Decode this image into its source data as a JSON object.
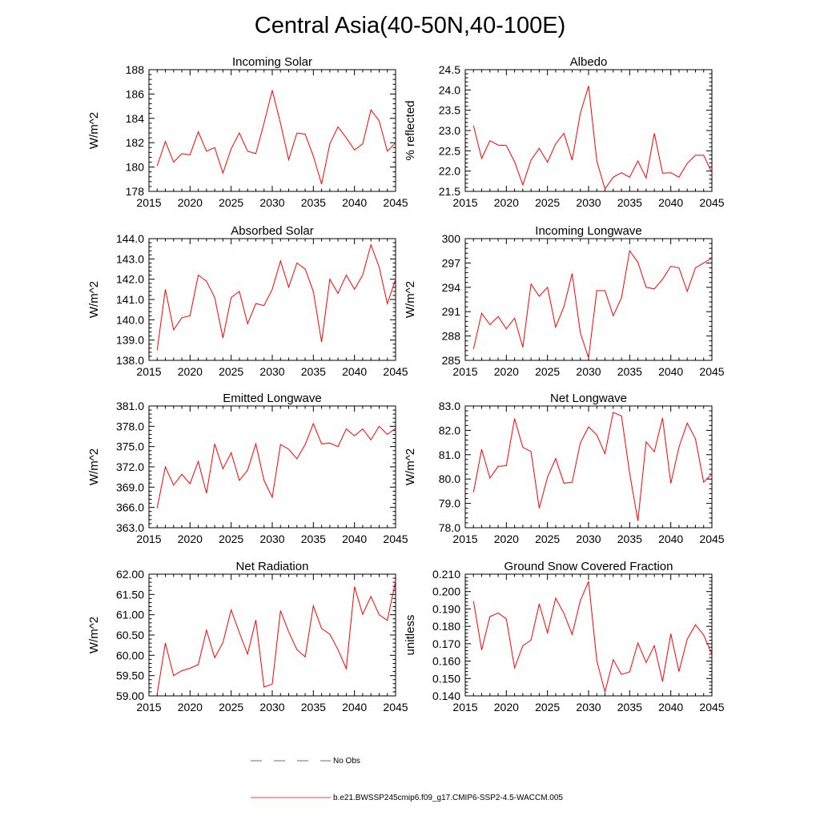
{
  "figure_title": "Central Asia(40-50N,40-100E)",
  "chart_data": [
    {
      "type": "line",
      "title": "Incoming Solar",
      "xlabel": "",
      "ylabel": "W/m^2",
      "xlim": [
        2015,
        2045
      ],
      "ylim": [
        178,
        188
      ],
      "xticks": [
        2015,
        2020,
        2025,
        2030,
        2035,
        2040,
        2045
      ],
      "yticks": [
        "178",
        "180",
        "182",
        "184",
        "186",
        "188"
      ],
      "x": [
        2016,
        2017,
        2018,
        2019,
        2020,
        2021,
        2022,
        2023,
        2024,
        2025,
        2026,
        2027,
        2028,
        2029,
        2030,
        2031,
        2032,
        2033,
        2034,
        2035,
        2036,
        2037,
        2038,
        2039,
        2040,
        2041,
        2042,
        2043,
        2044,
        2045
      ],
      "series": [
        {
          "name": "b.e21.BWSSP245cmip6.f09_g17.CMIP6-SSP2-4.5-WACCM.005",
          "values": [
            180.1,
            182.1,
            180.4,
            181.1,
            181.0,
            182.9,
            181.3,
            181.6,
            179.5,
            181.5,
            182.8,
            181.3,
            181.1,
            183.6,
            186.3,
            183.6,
            180.6,
            182.8,
            182.7,
            180.9,
            178.6,
            181.9,
            183.3,
            182.4,
            181.4,
            181.9,
            184.7,
            183.8,
            181.3,
            182.0
          ]
        }
      ]
    },
    {
      "type": "line",
      "title": "Albedo",
      "xlabel": "",
      "ylabel": "% reflected",
      "xlim": [
        2015,
        2045
      ],
      "ylim": [
        21.5,
        24.5
      ],
      "xticks": [
        2015,
        2020,
        2025,
        2030,
        2035,
        2040,
        2045
      ],
      "yticks": [
        "21.5",
        "22.0",
        "22.5",
        "23.0",
        "23.5",
        "24.0",
        "24.5"
      ],
      "x": [
        2016,
        2017,
        2018,
        2019,
        2020,
        2021,
        2022,
        2023,
        2024,
        2025,
        2026,
        2027,
        2028,
        2029,
        2030,
        2031,
        2032,
        2033,
        2034,
        2035,
        2036,
        2037,
        2038,
        2039,
        2040,
        2041,
        2042,
        2043,
        2044,
        2045
      ],
      "series": [
        {
          "name": "b.e21.BWSSP245cmip6.f09_g17.CMIP6-SSP2-4.5-WACCM.005",
          "values": [
            23.12,
            22.31,
            22.75,
            22.64,
            22.63,
            22.23,
            21.66,
            22.27,
            22.56,
            22.22,
            22.67,
            22.93,
            22.27,
            23.42,
            24.1,
            22.25,
            21.56,
            21.85,
            21.96,
            21.85,
            22.25,
            21.83,
            22.93,
            21.95,
            21.96,
            21.85,
            22.19,
            22.39,
            22.39,
            21.96
          ]
        }
      ]
    },
    {
      "type": "line",
      "title": "Absorbed Solar",
      "xlabel": "",
      "ylabel": "W/m^2",
      "xlim": [
        2015,
        2045
      ],
      "ylim": [
        138.0,
        144.0
      ],
      "xticks": [
        2015,
        2020,
        2025,
        2030,
        2035,
        2040,
        2045
      ],
      "yticks": [
        "138.0",
        "139.0",
        "140.0",
        "141.0",
        "142.0",
        "143.0",
        "144.0"
      ],
      "x": [
        2016,
        2017,
        2018,
        2019,
        2020,
        2021,
        2022,
        2023,
        2024,
        2025,
        2026,
        2027,
        2028,
        2029,
        2030,
        2031,
        2032,
        2033,
        2034,
        2035,
        2036,
        2037,
        2038,
        2039,
        2040,
        2041,
        2042,
        2043,
        2044,
        2045
      ],
      "series": [
        {
          "name": "b.e21.BWSSP245cmip6.f09_g17.CMIP6-SSP2-4.5-WACCM.005",
          "values": [
            138.5,
            141.5,
            139.5,
            140.1,
            140.2,
            142.2,
            141.9,
            141.1,
            139.1,
            141.1,
            141.4,
            139.8,
            140.8,
            140.7,
            141.5,
            142.9,
            141.6,
            142.8,
            142.5,
            141.4,
            138.9,
            142.0,
            141.3,
            142.2,
            141.5,
            142.2,
            143.7,
            142.6,
            140.8,
            142.0
          ]
        }
      ]
    },
    {
      "type": "line",
      "title": "Incoming Longwave",
      "xlabel": "",
      "ylabel": "W/m^2",
      "xlim": [
        2015,
        2045
      ],
      "ylim": [
        285,
        300
      ],
      "xticks": [
        2015,
        2020,
        2025,
        2030,
        2035,
        2040,
        2045
      ],
      "yticks": [
        "285",
        "288",
        "291",
        "294",
        "297",
        "300"
      ],
      "x": [
        2016,
        2017,
        2018,
        2019,
        2020,
        2021,
        2022,
        2023,
        2024,
        2025,
        2026,
        2027,
        2028,
        2029,
        2030,
        2031,
        2032,
        2033,
        2034,
        2035,
        2036,
        2037,
        2038,
        2039,
        2040,
        2041,
        2042,
        2043,
        2044,
        2045
      ],
      "series": [
        {
          "name": "b.e21.BWSSP245cmip6.f09_g17.CMIP6-SSP2-4.5-WACCM.005",
          "values": [
            286.4,
            290.8,
            289.4,
            290.4,
            288.9,
            290.2,
            286.6,
            294.4,
            292.9,
            294.0,
            289.1,
            291.6,
            295.7,
            288.4,
            285.3,
            293.6,
            293.6,
            290.5,
            292.7,
            298.5,
            297.1,
            294.0,
            293.8,
            295.0,
            296.6,
            296.4,
            293.5,
            296.4,
            297.0,
            297.6
          ]
        }
      ]
    },
    {
      "type": "line",
      "title": "Emitted Longwave",
      "xlabel": "",
      "ylabel": "W/m^2",
      "xlim": [
        2015,
        2045
      ],
      "ylim": [
        363.0,
        381.0
      ],
      "xticks": [
        2015,
        2020,
        2025,
        2030,
        2035,
        2040,
        2045
      ],
      "yticks": [
        "363.0",
        "366.0",
        "369.0",
        "372.0",
        "375.0",
        "378.0",
        "381.0"
      ],
      "x": [
        2016,
        2017,
        2018,
        2019,
        2020,
        2021,
        2022,
        2023,
        2024,
        2025,
        2026,
        2027,
        2028,
        2029,
        2030,
        2031,
        2032,
        2033,
        2034,
        2035,
        2036,
        2037,
        2038,
        2039,
        2040,
        2041,
        2042,
        2043,
        2044,
        2045
      ],
      "series": [
        {
          "name": "b.e21.BWSSP245cmip6.f09_g17.CMIP6-SSP2-4.5-WACCM.005",
          "values": [
            365.9,
            372.0,
            369.3,
            370.9,
            369.5,
            372.8,
            368.1,
            375.4,
            371.7,
            374.1,
            370.0,
            371.5,
            375.4,
            370.0,
            367.5,
            375.3,
            374.6,
            373.2,
            375.3,
            378.4,
            375.4,
            375.5,
            375.0,
            377.6,
            376.6,
            377.6,
            376.0,
            378.0,
            376.8,
            377.7
          ]
        }
      ]
    },
    {
      "type": "line",
      "title": "Net Longwave",
      "xlabel": "",
      "ylabel": "W/m^2",
      "xlim": [
        2015,
        2045
      ],
      "ylim": [
        78.0,
        83.0
      ],
      "xticks": [
        2015,
        2020,
        2025,
        2030,
        2035,
        2040,
        2045
      ],
      "yticks": [
        "78.0",
        "79.0",
        "80.0",
        "81.0",
        "82.0",
        "83.0"
      ],
      "x": [
        2016,
        2017,
        2018,
        2019,
        2020,
        2021,
        2022,
        2023,
        2024,
        2025,
        2026,
        2027,
        2028,
        2029,
        2030,
        2031,
        2032,
        2033,
        2034,
        2035,
        2036,
        2037,
        2038,
        2039,
        2040,
        2041,
        2042,
        2043,
        2044,
        2045
      ],
      "series": [
        {
          "name": "b.e21.BWSSP245cmip6.f09_g17.CMIP6-SSP2-4.5-WACCM.005",
          "values": [
            79.45,
            81.22,
            80.04,
            80.52,
            80.55,
            82.48,
            81.3,
            81.13,
            78.8,
            80.07,
            80.84,
            79.83,
            79.87,
            81.48,
            82.14,
            81.81,
            81.04,
            82.74,
            82.59,
            80.24,
            78.28,
            81.53,
            81.12,
            82.51,
            79.82,
            81.31,
            82.3,
            81.65,
            79.87,
            80.21
          ]
        }
      ]
    },
    {
      "type": "line",
      "title": "Net Radiation",
      "xlabel": "",
      "ylabel": "W/m^2",
      "xlim": [
        2015,
        2045
      ],
      "ylim": [
        59.0,
        62.0
      ],
      "xticks": [
        2015,
        2020,
        2025,
        2030,
        2035,
        2040,
        2045
      ],
      "yticks": [
        "59.00",
        "59.50",
        "60.00",
        "60.50",
        "61.00",
        "61.50",
        "62.00"
      ],
      "x": [
        2016,
        2017,
        2018,
        2019,
        2020,
        2021,
        2022,
        2023,
        2024,
        2025,
        2026,
        2027,
        2028,
        2029,
        2030,
        2031,
        2032,
        2033,
        2034,
        2035,
        2036,
        2037,
        2038,
        2039,
        2040,
        2041,
        2042,
        2043,
        2044,
        2045
      ],
      "series": [
        {
          "name": "b.e21.BWSSP245cmip6.f09_g17.CMIP6-SSP2-4.5-WACCM.005",
          "values": [
            59.05,
            60.3,
            59.5,
            59.62,
            59.68,
            59.77,
            60.62,
            59.94,
            60.31,
            61.12,
            60.56,
            60.03,
            60.87,
            59.22,
            59.29,
            61.1,
            60.58,
            60.14,
            59.96,
            61.22,
            60.66,
            60.52,
            60.14,
            59.67,
            61.69,
            61.01,
            61.45,
            61.0,
            60.86,
            61.83
          ]
        }
      ]
    },
    {
      "type": "line",
      "title": "Ground Snow Covered Fraction",
      "xlabel": "",
      "ylabel": "unitless",
      "xlim": [
        2015,
        2045
      ],
      "ylim": [
        0.14,
        0.21
      ],
      "xticks": [
        2015,
        2020,
        2025,
        2030,
        2035,
        2040,
        2045
      ],
      "yticks": [
        "0.140",
        "0.150",
        "0.160",
        "0.170",
        "0.180",
        "0.190",
        "0.200",
        "0.210"
      ],
      "x": [
        2016,
        2017,
        2018,
        2019,
        2020,
        2021,
        2022,
        2023,
        2024,
        2025,
        2026,
        2027,
        2028,
        2029,
        2030,
        2031,
        2032,
        2033,
        2034,
        2035,
        2036,
        2037,
        2038,
        2039,
        2040,
        2041,
        2042,
        2043,
        2044,
        2045
      ],
      "series": [
        {
          "name": "b.e21.BWSSP245cmip6.f09_g17.CMIP6-SSP2-4.5-WACCM.005",
          "values": [
            0.1945,
            0.1664,
            0.1856,
            0.1876,
            0.1843,
            0.1561,
            0.1688,
            0.172,
            0.1929,
            0.1762,
            0.1962,
            0.1875,
            0.1753,
            0.1947,
            0.2059,
            0.1602,
            0.1423,
            0.1608,
            0.1523,
            0.1538,
            0.1704,
            0.1592,
            0.1689,
            0.1483,
            0.1757,
            0.154,
            0.1726,
            0.1809,
            0.175,
            0.164
          ]
        }
      ]
    }
  ],
  "legend": {
    "items": [
      {
        "label": "No Obs",
        "color": "#3030a0",
        "dashed": true
      },
      {
        "label": "b.e21.BWSSP245cmip6.f09_g17.CMIP6-SSP2-4.5-WACCM.005",
        "color": "#ff0000",
        "dashed": false
      }
    ]
  },
  "colors": {
    "series": "#ff0000",
    "axis": "#000000",
    "obs": "#3030a0"
  }
}
